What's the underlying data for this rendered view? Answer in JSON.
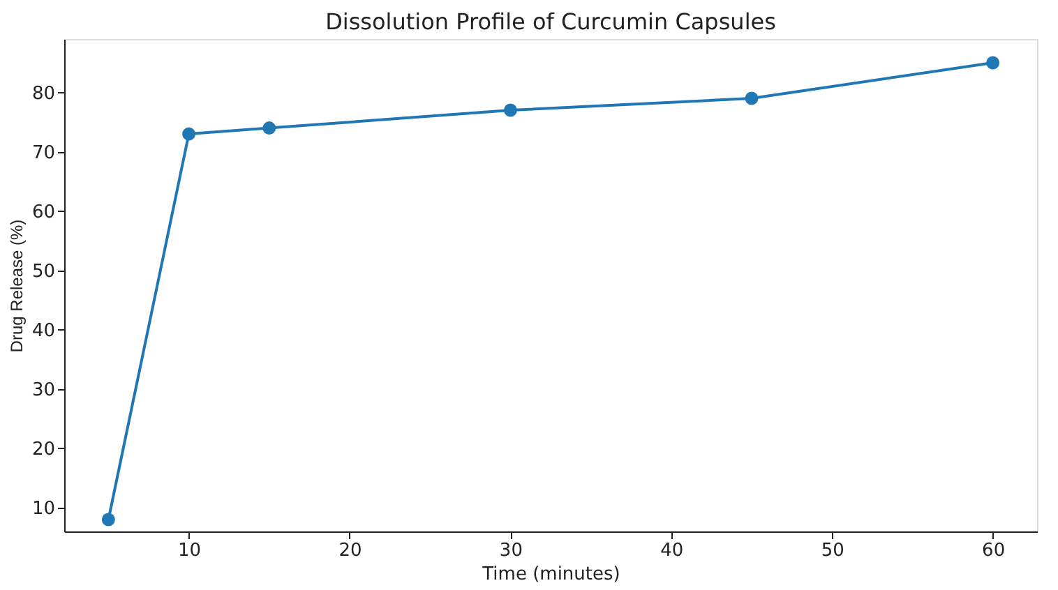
{
  "chart_data": {
    "type": "line",
    "title": "Dissolution Profile of Curcumin Capsules",
    "xlabel": "Time (minutes)",
    "ylabel": "Drug Release (%)",
    "x": [
      5,
      10,
      15,
      30,
      45,
      60
    ],
    "series": [
      {
        "color": "#1f77b4",
        "values": [
          8,
          73,
          74,
          77,
          79,
          85
        ]
      }
    ],
    "xlim": [
      2.25,
      62.75
    ],
    "xticks": [
      10,
      20,
      30,
      40,
      50,
      60
    ],
    "ylim": [
      6,
      89
    ],
    "yticks": [
      10,
      20,
      30,
      40,
      50,
      60,
      70,
      80
    ],
    "grid": false,
    "marker": "circle",
    "line_style": "solid"
  }
}
